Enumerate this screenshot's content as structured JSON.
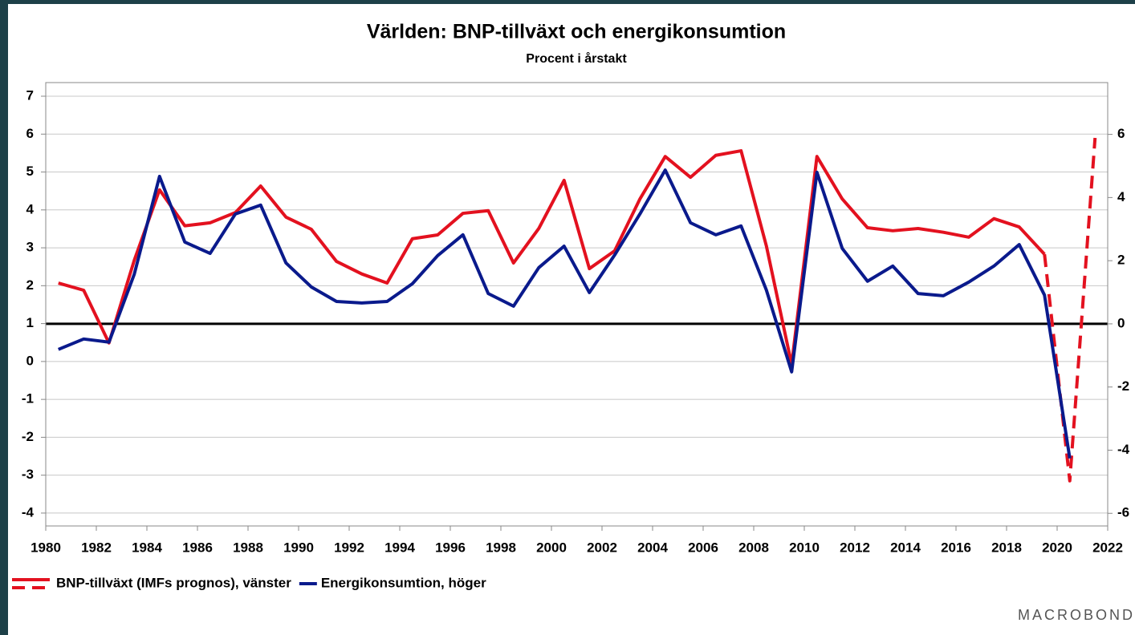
{
  "chart_data": {
    "type": "line",
    "title": "Världen: BNP-tillväxt och energikonsumtion",
    "subtitle": "Procent i årstakt",
    "watermark": "MACROBOND",
    "x": [
      1980.5,
      1981.5,
      1982.5,
      1983.5,
      1984.5,
      1985.5,
      1986.5,
      1987.5,
      1988.5,
      1989.5,
      1990.5,
      1991.5,
      1992.5,
      1993.5,
      1994.5,
      1995.5,
      1996.5,
      1997.5,
      1998.5,
      1999.5,
      2000.5,
      2001.5,
      2002.5,
      2003.5,
      2004.5,
      2005.5,
      2006.5,
      2007.5,
      2008.5,
      2009.5,
      2010.5,
      2011.5,
      2012.5,
      2013.5,
      2014.5,
      2015.5,
      2016.5,
      2017.5,
      2018.5,
      2019.5,
      2020.5,
      2021.5
    ],
    "forecast_start": 2019.5,
    "series": [
      {
        "name": "BNP-tillväxt (IMFs prognos), vänster",
        "color": "#e3111f",
        "axis": "y",
        "values": [
          2.07,
          1.88,
          0.49,
          2.67,
          4.53,
          3.58,
          3.66,
          3.93,
          4.63,
          3.81,
          3.49,
          2.64,
          2.31,
          2.07,
          3.24,
          3.34,
          3.91,
          3.98,
          2.6,
          3.51,
          4.78,
          2.45,
          2.92,
          4.29,
          5.41,
          4.86,
          5.44,
          5.56,
          3.05,
          -0.08,
          5.41,
          4.29,
          3.53,
          3.45,
          3.51,
          3.41,
          3.28,
          3.77,
          3.55,
          2.83,
          -3.15,
          5.9
        ]
      },
      {
        "name": "Energikonsumtion, höger",
        "color": "#0a1a8c",
        "axis": "y2",
        "values": [
          -0.81,
          -0.48,
          -0.58,
          1.57,
          4.67,
          2.59,
          2.23,
          3.48,
          3.76,
          1.93,
          1.17,
          0.71,
          0.66,
          0.71,
          1.27,
          2.16,
          2.82,
          0.96,
          0.56,
          1.78,
          2.46,
          0.99,
          2.18,
          3.48,
          4.87,
          3.2,
          2.82,
          3.1,
          1.07,
          -1.52,
          4.8,
          2.39,
          1.35,
          1.83,
          0.96,
          0.89,
          1.32,
          1.83,
          2.51,
          0.91,
          -4.26,
          null
        ]
      }
    ],
    "xlim": [
      1980,
      2022
    ],
    "xticks": [
      1980,
      1982,
      1984,
      1986,
      1988,
      1990,
      1992,
      1994,
      1996,
      1998,
      2000,
      2002,
      2004,
      2006,
      2008,
      2010,
      2012,
      2014,
      2016,
      2018,
      2020,
      2022
    ],
    "ylim": [
      -4.34,
      7.36
    ],
    "yticks": [
      -4,
      -3,
      -2,
      -1,
      0,
      1,
      2,
      3,
      4,
      5,
      6,
      7
    ],
    "y2lim": [
      -6.4,
      7.64
    ],
    "y2ticks": [
      -6,
      -4,
      -2,
      0,
      2,
      4,
      6
    ],
    "grid": true
  }
}
